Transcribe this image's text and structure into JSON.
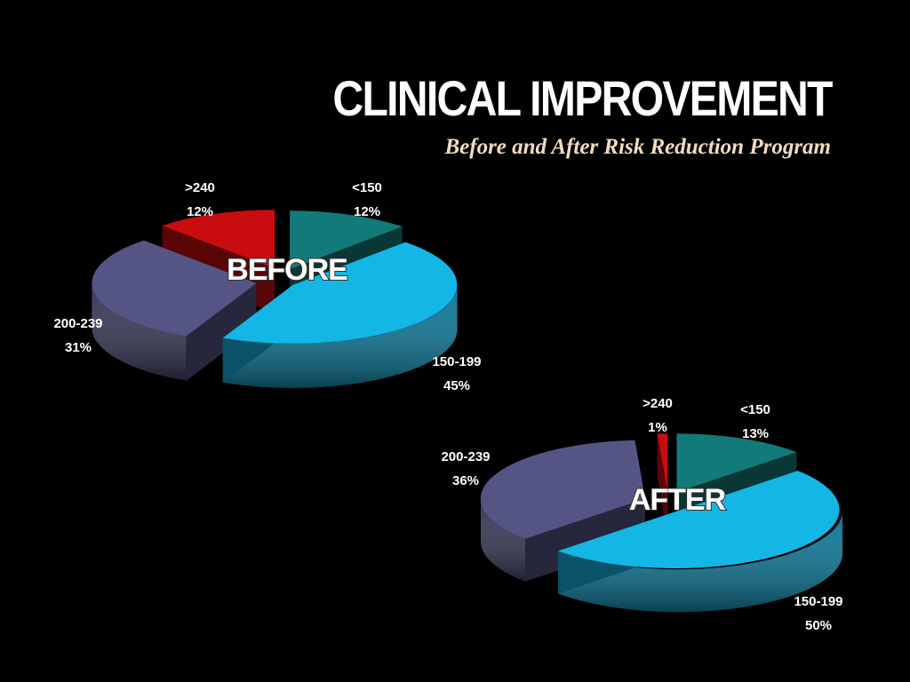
{
  "slide": {
    "title": "CLINICAL IMPROVEMENT",
    "subtitle": "Before and After Risk Reduction Program"
  },
  "colors": {
    "lt150": "#127a78",
    "r150_199": "#14b6e6",
    "r200_239": "#555585",
    "gt240": "#c80c10"
  },
  "chart_data": [
    {
      "type": "pie",
      "title": "BEFORE",
      "categories": [
        "<150",
        "150-199",
        "200-239",
        ">240"
      ],
      "values": [
        12,
        45,
        31,
        12
      ],
      "unit": "%",
      "labels": [
        {
          "name": "<150",
          "value": "12%"
        },
        {
          "name": "150-199",
          "value": "45%"
        },
        {
          "name": "200-239",
          "value": "31%"
        },
        {
          "name": ">240",
          "value": "12%"
        }
      ]
    },
    {
      "type": "pie",
      "title": "AFTER",
      "categories": [
        "<150",
        "150-199",
        "200-239",
        ">240"
      ],
      "values": [
        13,
        50,
        36,
        1
      ],
      "unit": "%",
      "labels": [
        {
          "name": "<150",
          "value": "13%"
        },
        {
          "name": "150-199",
          "value": "50%"
        },
        {
          "name": "200-239",
          "value": "36%"
        },
        {
          "name": ">240",
          "value": "1%"
        }
      ]
    }
  ]
}
